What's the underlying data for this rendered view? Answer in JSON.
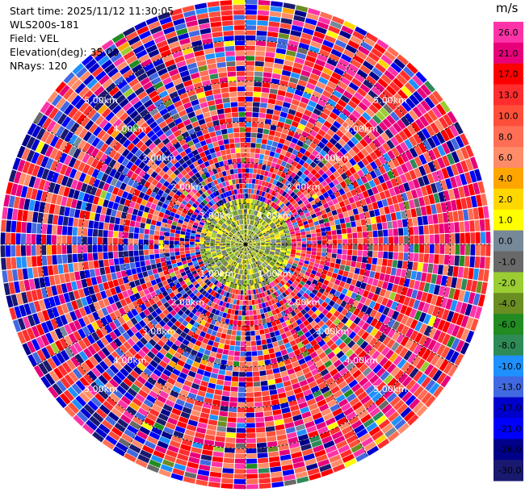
{
  "header": {
    "start_time": "Start time: 2025/11/12 11:30:05",
    "instrument": "WLS200s-181",
    "field": "Field: VEL",
    "elevation": "Elevation(deg): 35.00",
    "nrays": "NRays: 120"
  },
  "chart_data": {
    "type": "heatmap",
    "projection": "polar-ppi",
    "field": "VEL",
    "n_rays": 120,
    "max_range_km": 6.0,
    "range_rings_km": [
      1.0,
      2.0,
      3.0,
      4.0,
      5.0
    ],
    "ring_labels": [
      "1.00km",
      "2.00km",
      "3.00km",
      "4.00km",
      "5.00km"
    ],
    "colorbar": {
      "unit": "m/s",
      "ticks": [
        "26.0",
        "21.0",
        "17.0",
        "13.0",
        "10.0",
        "8.0",
        "6.0",
        "4.0",
        "2.0",
        "1.0",
        "0.0",
        "-1.0",
        "-2.0",
        "-4.0",
        "-6.0",
        "-8.0",
        "-10.0",
        "-13.0",
        "-17.0",
        "-21.0",
        "-26.0",
        "-30.0"
      ],
      "colors": [
        "#ff33a8",
        "#e8007a",
        "#ff0000",
        "#ff2d2d",
        "#ff4f3a",
        "#ff6e55",
        "#ff8c69",
        "#ffa500",
        "#ffd700",
        "#ffff00",
        "#778899",
        "#696969",
        "#9acd32",
        "#6b8e23",
        "#228b22",
        "#2e8b57",
        "#1e90ff",
        "#4169e1",
        "#0000cd",
        "#0000ff",
        "#00008b",
        "#191970"
      ]
    }
  }
}
